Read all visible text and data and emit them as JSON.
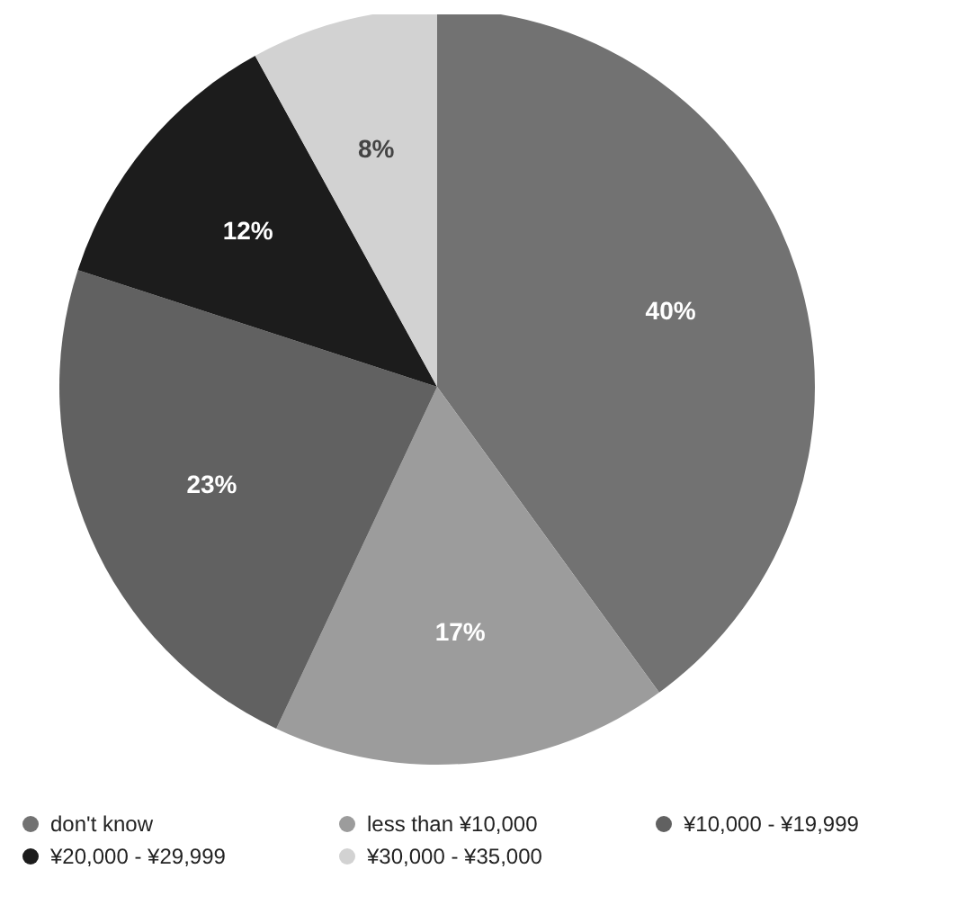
{
  "chart_data": {
    "type": "pie",
    "categories": [
      "don't know",
      "less than ¥10,000",
      "¥10,000 - ¥19,999",
      "¥20,000 - ¥29,999",
      "¥30,000 - ¥35,000"
    ],
    "values": [
      40,
      17,
      23,
      12,
      8
    ],
    "colors": [
      "#727272",
      "#9c9c9c",
      "#616161",
      "#1c1c1c",
      "#d2d2d2"
    ],
    "value_labels": [
      "40%",
      "17%",
      "23%",
      "12%",
      "8%"
    ],
    "legend": "bottom"
  }
}
